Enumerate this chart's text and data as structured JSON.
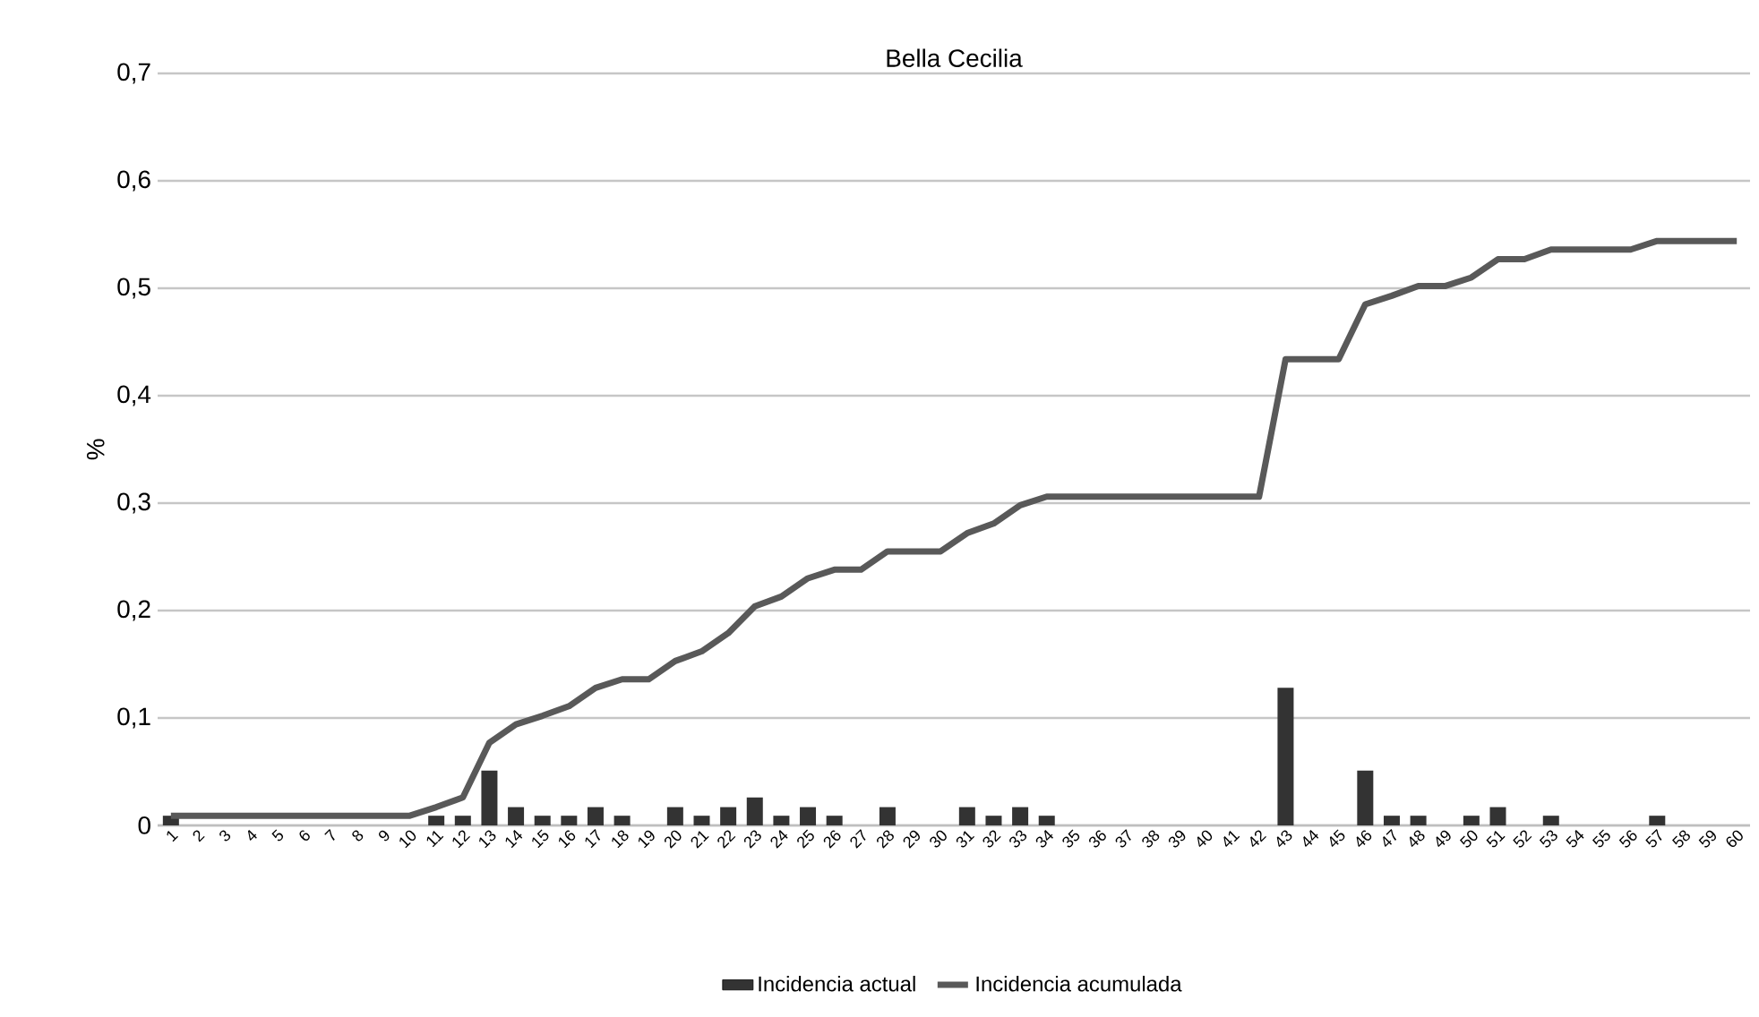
{
  "chart_data": {
    "type": "bar",
    "title": "Bella Cecilia",
    "ylabel": "%",
    "categories": [
      "1",
      "2",
      "3",
      "4",
      "5",
      "6",
      "7",
      "8",
      "9",
      "10",
      "11",
      "12",
      "13",
      "14",
      "15",
      "16",
      "17",
      "18",
      "19",
      "20",
      "21",
      "22",
      "23",
      "24",
      "25",
      "26",
      "27",
      "28",
      "29",
      "30",
      "31",
      "32",
      "33",
      "34",
      "35",
      "36",
      "37",
      "38",
      "39",
      "40",
      "41",
      "42",
      "43",
      "44",
      "45",
      "46",
      "47",
      "48",
      "49",
      "50",
      "51",
      "52",
      "53",
      "54",
      "55",
      "56",
      "57",
      "58",
      "59",
      "60"
    ],
    "series": [
      {
        "name": "Incidencia actual",
        "color": "#333333",
        "values": [
          0.009,
          0,
          0,
          0,
          0,
          0,
          0,
          0,
          0,
          0,
          0.009,
          0.009,
          0.051,
          0.017,
          0.009,
          0.009,
          0.017,
          0.009,
          0,
          0.017,
          0.009,
          0.017,
          0.026,
          0.009,
          0.017,
          0.009,
          0,
          0.017,
          0,
          0,
          0.017,
          0.009,
          0.017,
          0.009,
          0,
          0,
          0,
          0,
          0,
          0,
          0,
          0,
          0.128,
          0,
          0,
          0.051,
          0.009,
          0.009,
          0,
          0.009,
          0.017,
          0,
          0.009,
          0,
          0,
          0,
          0.009,
          0,
          0,
          0
        ]
      },
      {
        "name": "Incidencia acumulada",
        "type": "line",
        "color": "#595959",
        "values": [
          0.009,
          0.009,
          0.009,
          0.009,
          0.009,
          0.009,
          0.009,
          0.009,
          0.009,
          0.009,
          0.017,
          0.026,
          0.077,
          0.094,
          0.102,
          0.111,
          0.128,
          0.136,
          0.136,
          0.153,
          0.162,
          0.179,
          0.204,
          0.213,
          0.23,
          0.238,
          0.238,
          0.255,
          0.255,
          0.255,
          0.272,
          0.281,
          0.298,
          0.306,
          0.306,
          0.306,
          0.306,
          0.306,
          0.306,
          0.306,
          0.306,
          0.306,
          0.434,
          0.434,
          0.434,
          0.485,
          0.493,
          0.502,
          0.502,
          0.51,
          0.527,
          0.527,
          0.536,
          0.536,
          0.536,
          0.536,
          0.544,
          0.544,
          0.544,
          0.544
        ]
      }
    ],
    "ylim": [
      0,
      0.7
    ],
    "yticks": [
      {
        "value": 0,
        "label": "0"
      },
      {
        "value": 0.1,
        "label": "0,1"
      },
      {
        "value": 0.2,
        "label": "0,2"
      },
      {
        "value": 0.3,
        "label": "0,3"
      },
      {
        "value": 0.4,
        "label": "0,4"
      },
      {
        "value": 0.5,
        "label": "0,5"
      },
      {
        "value": 0.6,
        "label": "0,6"
      },
      {
        "value": 0.7,
        "label": "0,7"
      }
    ],
    "grid": "y",
    "legend": "bottom",
    "marker": "none"
  }
}
